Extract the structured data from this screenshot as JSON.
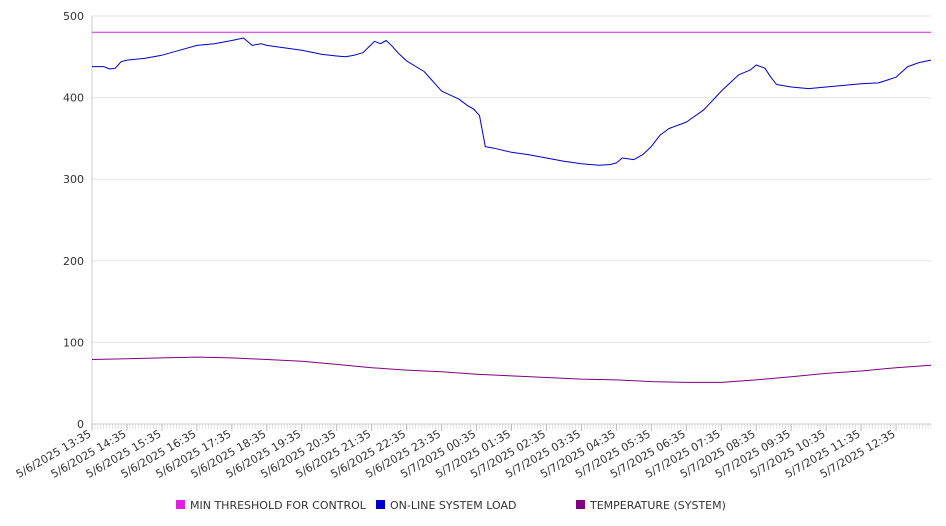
{
  "chart_data": {
    "type": "line",
    "ylim": [
      0,
      500
    ],
    "yticks": [
      0,
      100,
      200,
      300,
      400,
      500
    ],
    "grid": "horizontal",
    "legend_position": "bottom",
    "x_tick_labels": [
      "5/6/2025 13:35",
      "5/6/2025 14:35",
      "5/6/2025 15:35",
      "5/6/2025 16:35",
      "5/6/2025 17:35",
      "5/6/2025 18:35",
      "5/6/2025 19:35",
      "5/6/2025 20:35",
      "5/6/2025 21:35",
      "5/6/2025 22:35",
      "5/6/2025 23:35",
      "5/7/2025 00:35",
      "5/7/2025 01:35",
      "5/7/2025 02:35",
      "5/7/2025 03:35",
      "5/7/2025 04:35",
      "5/7/2025 05:35",
      "5/7/2025 06:35",
      "5/7/2025 07:35",
      "5/7/2025 08:35",
      "5/7/2025 09:35",
      "5/7/2025 10:35",
      "5/7/2025 11:35",
      "5/7/2025 12:35"
    ],
    "x_range": [
      "5/6/2025 13:35",
      "5/7/2025 13:35"
    ],
    "series": [
      {
        "name": "MIN THRESHOLD FOR CONTROL",
        "color": "#e020e0",
        "points": [
          [
            "5/6/2025 13:35",
            480
          ],
          [
            "5/7/2025 13:35",
            480
          ]
        ]
      },
      {
        "name": "ON-LINE SYSTEM LOAD",
        "color": "#0000cc",
        "points": [
          [
            "5/6/2025 13:35",
            438
          ],
          [
            "5/6/2025 13:55",
            438
          ],
          [
            "5/6/2025 14:05",
            435
          ],
          [
            "5/6/2025 14:15",
            436
          ],
          [
            "5/6/2025 14:25",
            444
          ],
          [
            "5/6/2025 14:35",
            446
          ],
          [
            "5/6/2025 15:05",
            448
          ],
          [
            "5/6/2025 15:35",
            452
          ],
          [
            "5/6/2025 16:05",
            458
          ],
          [
            "5/6/2025 16:35",
            464
          ],
          [
            "5/6/2025 17:05",
            466
          ],
          [
            "5/6/2025 17:35",
            470
          ],
          [
            "5/6/2025 17:55",
            473
          ],
          [
            "5/6/2025 18:10",
            464
          ],
          [
            "5/6/2025 18:25",
            466
          ],
          [
            "5/6/2025 18:35",
            464
          ],
          [
            "5/6/2025 19:35",
            458
          ],
          [
            "5/6/2025 20:10",
            453
          ],
          [
            "5/6/2025 20:35",
            451
          ],
          [
            "5/6/2025 20:50",
            450
          ],
          [
            "5/6/2025 21:05",
            452
          ],
          [
            "5/6/2025 21:20",
            455
          ],
          [
            "5/6/2025 21:30",
            462
          ],
          [
            "5/6/2025 21:40",
            469
          ],
          [
            "5/6/2025 21:50",
            466
          ],
          [
            "5/6/2025 22:00",
            470
          ],
          [
            "5/6/2025 22:10",
            463
          ],
          [
            "5/6/2025 22:20",
            455
          ],
          [
            "5/6/2025 22:35",
            445
          ],
          [
            "5/6/2025 23:05",
            432
          ],
          [
            "5/6/2025 23:35",
            408
          ],
          [
            "5/7/2025 00:05",
            398
          ],
          [
            "5/7/2025 00:20",
            390
          ],
          [
            "5/7/2025 00:30",
            386
          ],
          [
            "5/7/2025 00:40",
            378
          ],
          [
            "5/7/2025 00:50",
            340
          ],
          [
            "5/7/2025 01:05",
            338
          ],
          [
            "5/7/2025 01:35",
            333
          ],
          [
            "5/7/2025 02:05",
            330
          ],
          [
            "5/7/2025 02:35",
            326
          ],
          [
            "5/7/2025 03:05",
            322
          ],
          [
            "5/7/2025 03:35",
            319
          ],
          [
            "5/7/2025 04:05",
            317
          ],
          [
            "5/7/2025 04:25",
            318
          ],
          [
            "5/7/2025 04:35",
            320
          ],
          [
            "5/7/2025 04:45",
            326
          ],
          [
            "5/7/2025 05:05",
            324
          ],
          [
            "5/7/2025 05:20",
            330
          ],
          [
            "5/7/2025 05:35",
            340
          ],
          [
            "5/7/2025 05:50",
            354
          ],
          [
            "5/7/2025 06:05",
            362
          ],
          [
            "5/7/2025 06:35",
            370
          ],
          [
            "5/7/2025 07:05",
            385
          ],
          [
            "5/7/2025 07:35",
            408
          ],
          [
            "5/7/2025 08:05",
            428
          ],
          [
            "5/7/2025 08:25",
            434
          ],
          [
            "5/7/2025 08:35",
            440
          ],
          [
            "5/7/2025 08:50",
            436
          ],
          [
            "5/7/2025 09:00",
            425
          ],
          [
            "5/7/2025 09:10",
            416
          ],
          [
            "5/7/2025 09:35",
            413
          ],
          [
            "5/7/2025 10:05",
            411
          ],
          [
            "5/7/2025 10:35",
            413
          ],
          [
            "5/7/2025 11:05",
            415
          ],
          [
            "5/7/2025 11:35",
            417
          ],
          [
            "5/7/2025 12:05",
            418
          ],
          [
            "5/7/2025 12:35",
            425
          ],
          [
            "5/7/2025 12:55",
            438
          ],
          [
            "5/7/2025 13:15",
            443
          ],
          [
            "5/7/2025 13:35",
            446
          ]
        ]
      },
      {
        "name": "TEMPERATURE (SYSTEM)",
        "color": "#800080",
        "points": [
          [
            "5/6/2025 13:35",
            79
          ],
          [
            "5/6/2025 14:35",
            80
          ],
          [
            "5/6/2025 15:35",
            81
          ],
          [
            "5/6/2025 16:35",
            82
          ],
          [
            "5/6/2025 17:35",
            81
          ],
          [
            "5/6/2025 18:35",
            79
          ],
          [
            "5/6/2025 19:35",
            77
          ],
          [
            "5/6/2025 20:35",
            73
          ],
          [
            "5/6/2025 21:35",
            69
          ],
          [
            "5/6/2025 22:35",
            66
          ],
          [
            "5/6/2025 23:35",
            64
          ],
          [
            "5/7/2025 00:35",
            61
          ],
          [
            "5/7/2025 01:35",
            59
          ],
          [
            "5/7/2025 02:35",
            57
          ],
          [
            "5/7/2025 03:35",
            55
          ],
          [
            "5/7/2025 04:35",
            54
          ],
          [
            "5/7/2025 05:35",
            52
          ],
          [
            "5/7/2025 06:35",
            51
          ],
          [
            "5/7/2025 07:35",
            51
          ],
          [
            "5/7/2025 08:35",
            54
          ],
          [
            "5/7/2025 09:35",
            58
          ],
          [
            "5/7/2025 10:35",
            62
          ],
          [
            "5/7/2025 11:35",
            65
          ],
          [
            "5/7/2025 12:35",
            69
          ],
          [
            "5/7/2025 13:35",
            72
          ]
        ]
      }
    ]
  }
}
